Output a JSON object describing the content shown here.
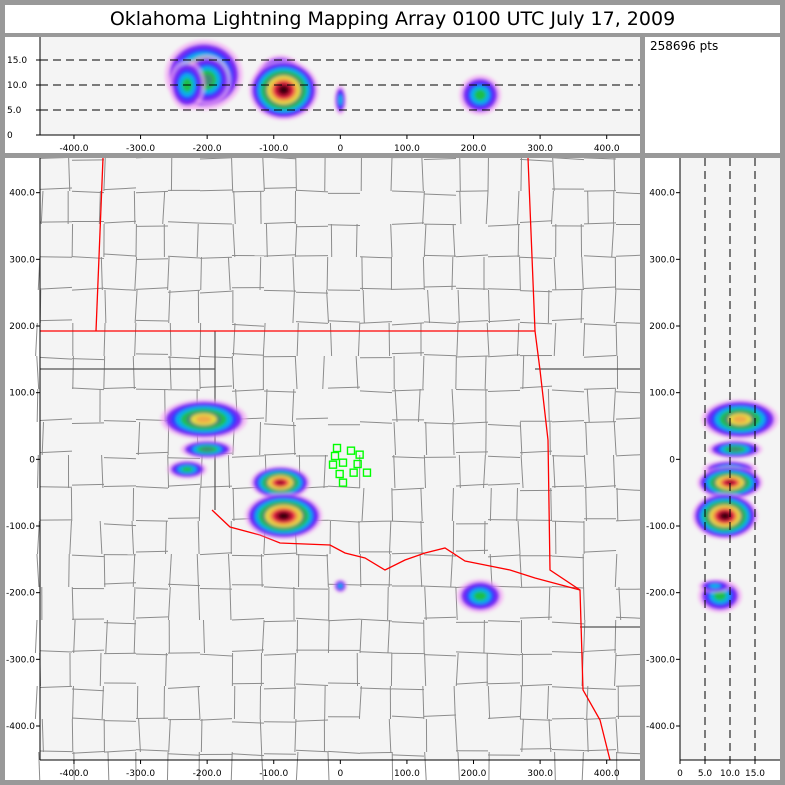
{
  "title": "Oklahoma Lightning Mapping Array   0100 UTC  July 17, 2009",
  "info": {
    "points_label": "258696 pts"
  },
  "colors": {
    "density_scale": [
      "#f4a8f4",
      "#7a1cf0",
      "#2a3cff",
      "#00b8e8",
      "#20c040",
      "#3e8a78",
      "#f0e040",
      "#f0a848",
      "#e81e4a",
      "#a0102a",
      "#300010"
    ],
    "state_border": "#ff0000",
    "county_border": "#8c8c8c",
    "station": "#00ff00",
    "plot_background": "#f4f4f4"
  },
  "chart_data": [
    {
      "type": "heatmap",
      "panel": "plan-view",
      "x_ticks": [
        "-400.0",
        "-300.0",
        "-200.0",
        "-100.0",
        "0",
        "100.0",
        "200.0",
        "300.0",
        "400.0"
      ],
      "x_tick_values": [
        -400,
        -300,
        -200,
        -100,
        0,
        100,
        200,
        300,
        400
      ],
      "y_ticks": [
        "400.0",
        "300.0",
        "200.0",
        "100.0",
        "0",
        "-100.0",
        "-200.0",
        "-300.0",
        "-400.0"
      ],
      "y_tick_values": [
        400,
        300,
        200,
        100,
        0,
        -100,
        -200,
        -300,
        -400
      ],
      "xlim": [
        -451,
        450
      ],
      "ylim": [
        -451,
        452
      ],
      "clusters": [
        {
          "x": -205,
          "y": 60,
          "rx": 65,
          "ry": 30,
          "alt": 12,
          "alt_spread": 7,
          "level": 7
        },
        {
          "x": -200,
          "y": 15,
          "rx": 40,
          "ry": 14,
          "alt": 11,
          "alt_spread": 5,
          "level": 5
        },
        {
          "x": -230,
          "y": -15,
          "rx": 30,
          "ry": 14,
          "alt": 10,
          "alt_spread": 5,
          "level": 4
        },
        {
          "x": -90,
          "y": -35,
          "rx": 45,
          "ry": 25,
          "alt": 10,
          "alt_spread": 6,
          "level": 9
        },
        {
          "x": -85,
          "y": -85,
          "rx": 58,
          "ry": 35,
          "alt": 9,
          "alt_spread": 6,
          "level": 10
        },
        {
          "x": 210,
          "y": -205,
          "rx": 35,
          "ry": 25,
          "alt": 8,
          "alt_spread": 4,
          "level": 4
        },
        {
          "x": 0,
          "y": -190,
          "rx": 10,
          "ry": 10,
          "alt": 7,
          "alt_spread": 3,
          "level": 3
        }
      ],
      "stations": [
        [
          -5,
          17
        ],
        [
          16,
          13
        ],
        [
          29,
          7
        ],
        [
          -8,
          5
        ],
        [
          4,
          -5
        ],
        [
          -11,
          -8
        ],
        [
          26,
          -7
        ],
        [
          -1,
          -22
        ],
        [
          20,
          -20
        ],
        [
          40,
          -20
        ],
        [
          4,
          -35
        ]
      ]
    },
    {
      "type": "heatmap",
      "panel": "east-west-altitude",
      "x_ticks": [
        "-400.0",
        "-300.0",
        "-200.0",
        "-100.0",
        "0",
        "100.0",
        "200.0",
        "300.0",
        "400.0"
      ],
      "x_tick_values": [
        -400,
        -300,
        -200,
        -100,
        0,
        100,
        200,
        300,
        400
      ],
      "y_ticks": [
        "0",
        "5.0",
        "10.0",
        "15.0"
      ],
      "y_tick_values": [
        0,
        5,
        10,
        15
      ],
      "xlim": [
        -451,
        450
      ],
      "ylim": [
        0,
        19.6
      ],
      "dashed_gridlines": [
        5,
        10,
        15
      ]
    },
    {
      "type": "heatmap",
      "panel": "altitude-north-south",
      "x_ticks": [
        "0",
        "5.0",
        "10.0",
        "15.0"
      ],
      "x_tick_values": [
        0,
        5,
        10,
        15
      ],
      "y_ticks": [
        "400.0",
        "300.0",
        "200.0",
        "100.0",
        "0",
        "-100.0",
        "-200.0",
        "-300.0",
        "-400.0"
      ],
      "y_tick_values": [
        400,
        300,
        200,
        100,
        0,
        -100,
        -200,
        -300,
        -400
      ],
      "xlim": [
        0,
        20
      ],
      "ylim": [
        -451,
        452
      ],
      "dashed_gridlines": [
        5,
        10,
        15
      ]
    }
  ]
}
